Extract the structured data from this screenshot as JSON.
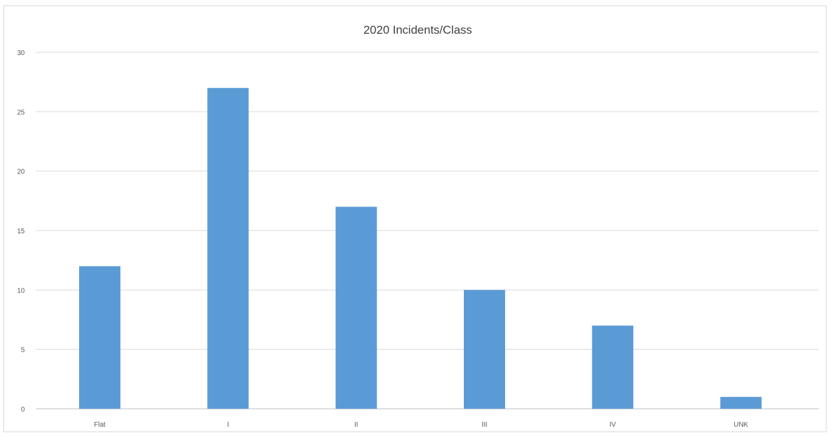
{
  "chart_data": {
    "type": "bar",
    "title": "2020 Incidents/Class",
    "xlabel": "",
    "ylabel": "",
    "categories": [
      "Flat",
      "I",
      "II",
      "III",
      "IV",
      "UNK"
    ],
    "values": [
      12,
      27,
      17,
      10,
      7,
      1
    ],
    "ylim": [
      0,
      30
    ],
    "yticks": [
      "0",
      "5",
      "10",
      "15",
      "20",
      "25",
      "30"
    ],
    "grid": true,
    "legend": "none",
    "bar_color": "#5b9bd5"
  }
}
